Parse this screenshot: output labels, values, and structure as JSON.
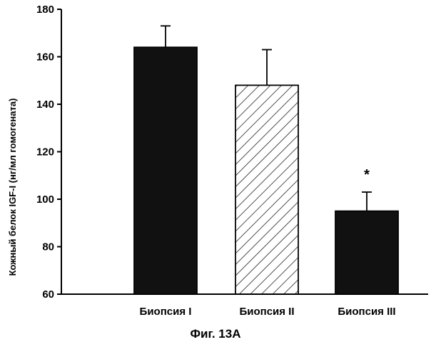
{
  "chart_data": {
    "type": "bar",
    "categories": [
      "Биопсия I",
      "Биопсия II",
      "Биопсия III"
    ],
    "values": [
      164,
      148,
      95
    ],
    "error_upper": [
      173,
      163,
      103
    ],
    "fills": [
      "solid",
      "hatched",
      "solid"
    ],
    "ylabel": "Кожный белок IGF-I   (нг/мл гомогената)",
    "ylim": [
      60,
      180
    ],
    "yticks": [
      60,
      80,
      100,
      120,
      140,
      160,
      180
    ],
    "yticklabels": [
      "60",
      "80",
      "100",
      "120",
      "140",
      "160",
      "180"
    ],
    "grid": false,
    "annotations": [
      {
        "category": "Биопсия III",
        "text": "*"
      }
    ]
  },
  "caption": "Фиг. 13А",
  "colors": {
    "bar": "#111111",
    "axis": "#000000",
    "hatch": "#222222"
  }
}
